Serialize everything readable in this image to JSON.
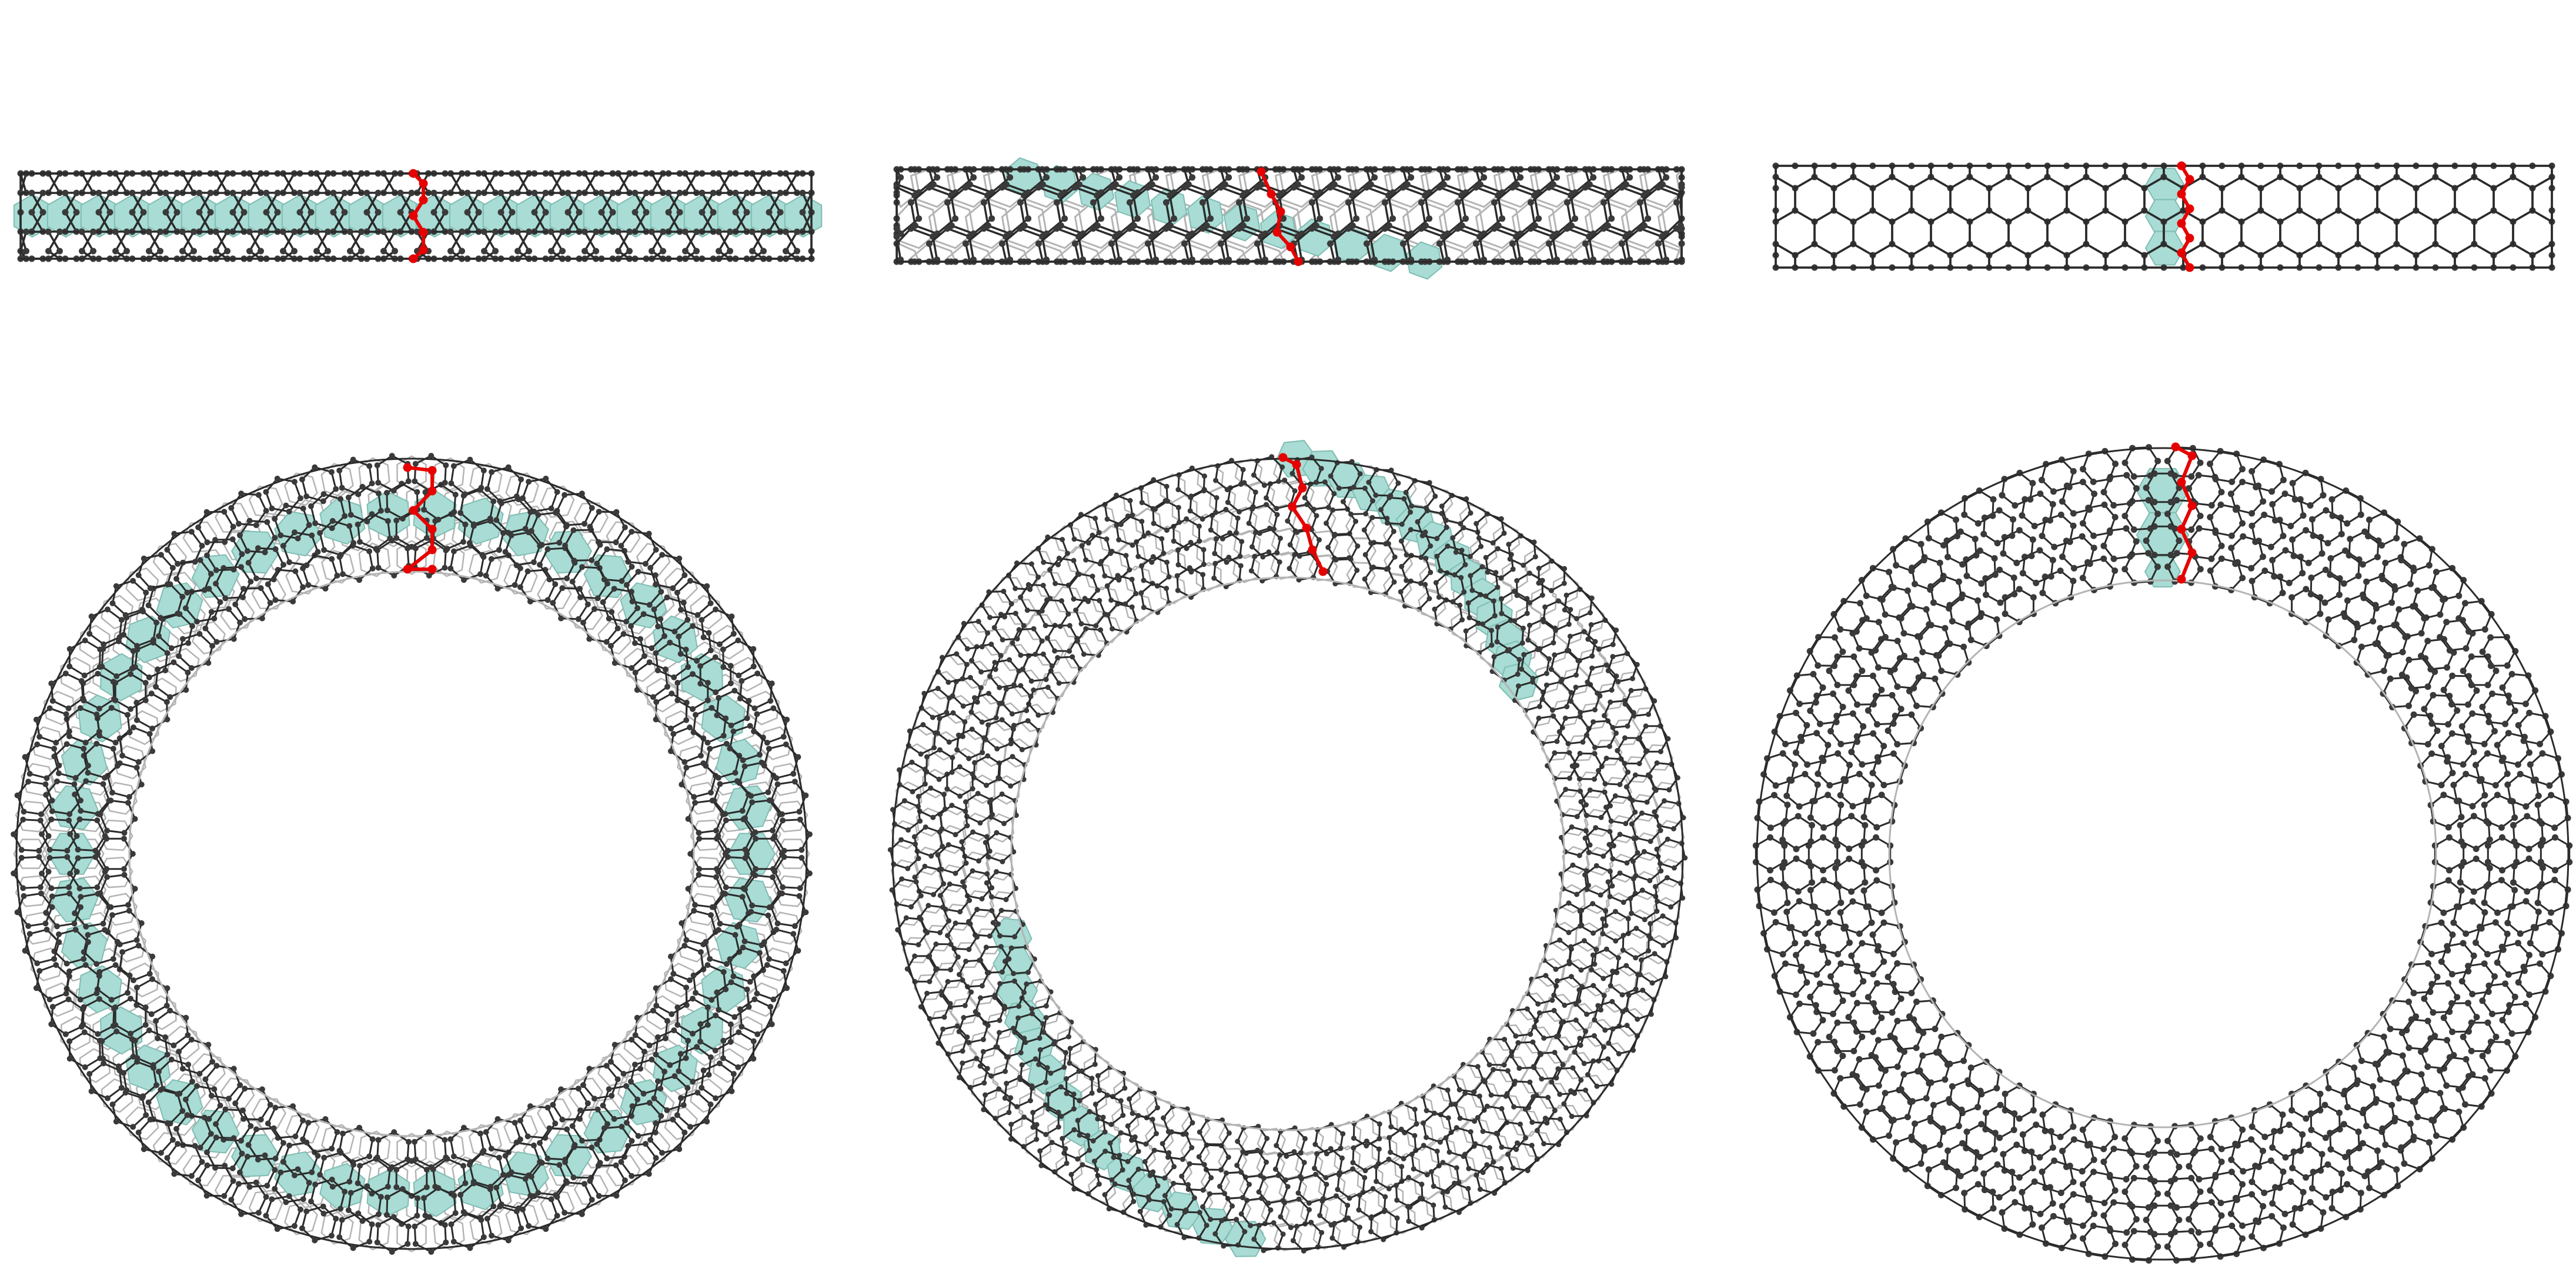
{
  "colors": {
    "background": "#ffffff",
    "front_bond": "#2b2b2b",
    "back_bond": "#b4b4b4",
    "atom": "#3a3a3a",
    "back_atom": "#9a9a9a",
    "highlight_fill": "#a8dcd4",
    "highlight_edge": "#7fbdb3",
    "defect": "#e60000"
  },
  "panels": [
    {
      "id": "armchair",
      "highlight": "axial-band",
      "view": [
        "side",
        "top"
      ]
    },
    {
      "id": "chiral",
      "highlight": "helical-band",
      "view": [
        "side",
        "top"
      ]
    },
    {
      "id": "zigzag",
      "highlight": "circumferential-strip",
      "view": [
        "side",
        "top"
      ]
    }
  ]
}
